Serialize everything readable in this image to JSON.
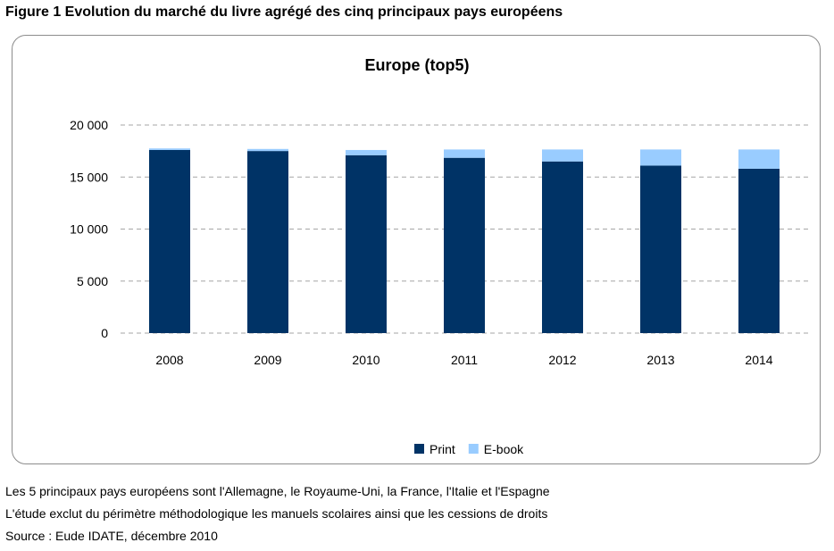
{
  "figure_title": "Figure 1 Evolution du marché du livre agrégé des cinq principaux pays européens",
  "chart_data": {
    "type": "bar",
    "stacked": true,
    "title": "Europe (top5)",
    "xlabel": "",
    "ylabel": "",
    "categories": [
      "2008",
      "2009",
      "2010",
      "2011",
      "2012",
      "2013",
      "2014"
    ],
    "series": [
      {
        "name": "Print",
        "color": "#003366",
        "values": [
          17600,
          17500,
          17100,
          16850,
          16500,
          16100,
          15800
        ]
      },
      {
        "name": "E-book",
        "color": "#99ccff",
        "values": [
          150,
          200,
          500,
          800,
          1150,
          1550,
          1850
        ]
      }
    ],
    "ylim": [
      0,
      20000
    ],
    "yticks": [
      0,
      5000,
      10000,
      15000,
      20000
    ],
    "ytick_labels": [
      "0",
      "5 000",
      "10 000",
      "15 000",
      "20 000"
    ],
    "grid": true,
    "legend_position": "bottom"
  },
  "notes": [
    "Les 5 principaux pays européens sont l'Allemagne, le Royaume-Uni, la France, l'Italie et l'Espagne",
    "L'étude exclut du périmètre méthodologique les manuels scolaires ainsi que les cessions de droits",
    "Source : Eude IDATE, décembre 2010"
  ]
}
